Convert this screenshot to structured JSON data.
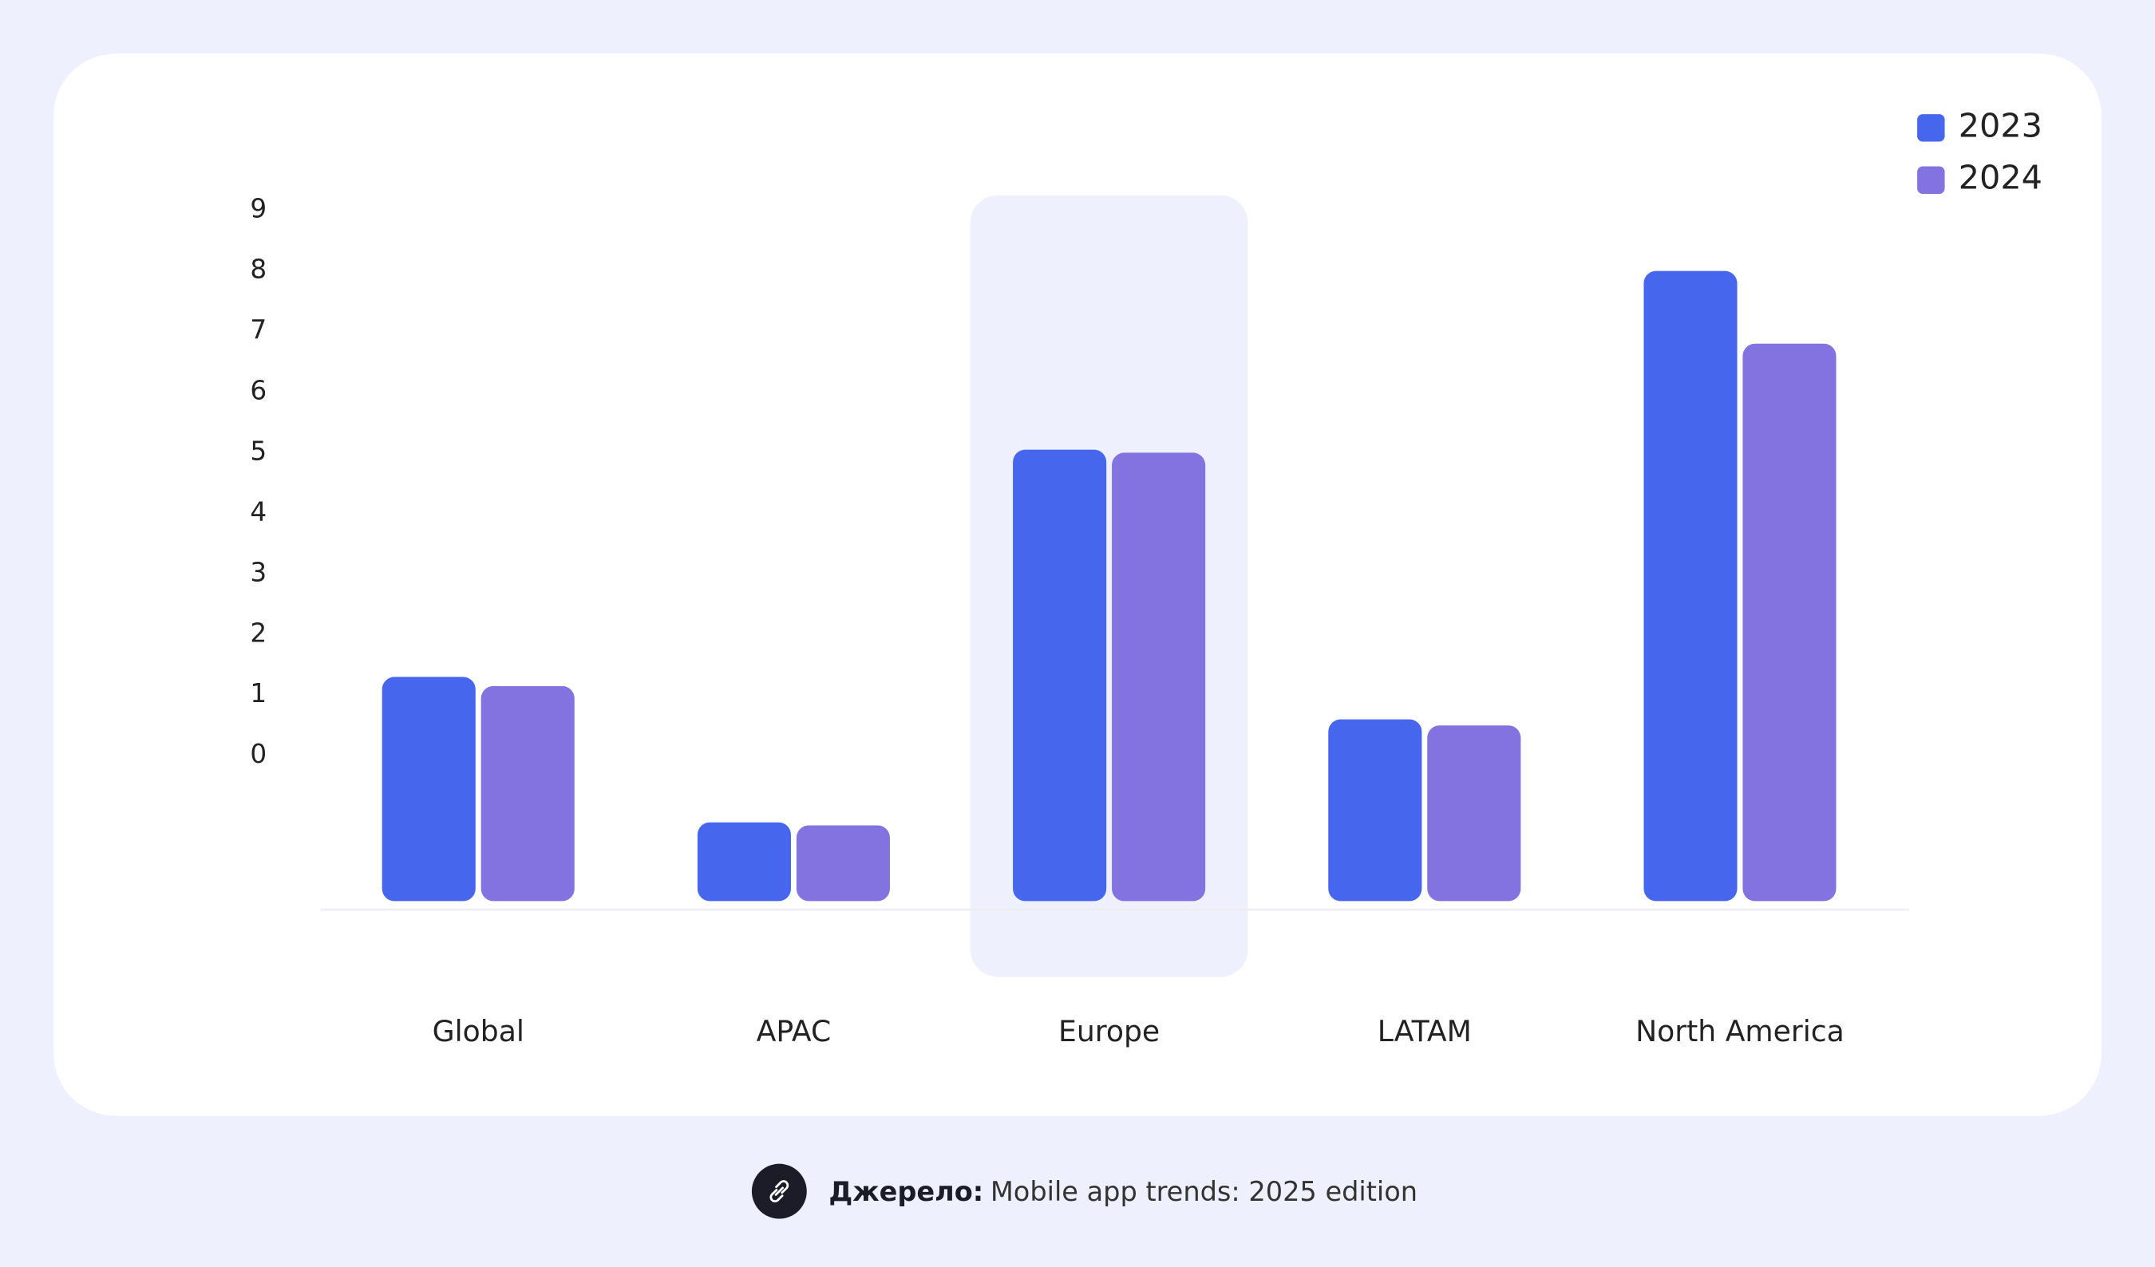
{
  "chart_data": {
    "type": "bar",
    "categories": [
      "Global",
      "APAC",
      "Europe",
      "LATAM",
      "North America"
    ],
    "series": [
      {
        "name": "2023",
        "color": "#4766ee",
        "values": [
          1.3,
          -1.1,
          5.05,
          0.6,
          8.0
        ]
      },
      {
        "name": "2024",
        "color": "#8373e0",
        "values": [
          1.15,
          -1.15,
          5.0,
          0.5,
          6.8
        ]
      }
    ],
    "ylim": [
      -2.4,
      9
    ],
    "yticks": [
      0,
      1,
      2,
      3,
      4,
      5,
      6,
      7,
      8,
      9
    ],
    "legend": "top-right",
    "highlight": 2
  },
  "footer": {
    "source_label": "Джерело:",
    "source_text": "Mobile app trends: 2025 edition"
  }
}
